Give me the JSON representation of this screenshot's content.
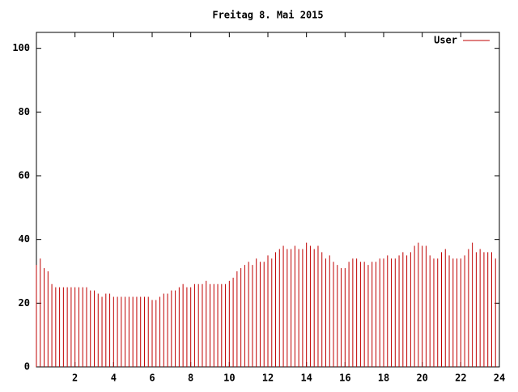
{
  "chart_data": {
    "type": "impulses",
    "title": "Freitag 8. Mai 2015",
    "x": [
      0,
      0.2,
      0.4,
      0.6,
      0.8,
      1,
      1.2,
      1.4,
      1.6,
      1.8,
      2,
      2.2,
      2.4,
      2.6,
      2.8,
      3,
      3.2,
      3.4,
      3.6,
      3.8,
      4,
      4.2,
      4.4,
      4.6,
      4.8,
      5,
      5.2,
      5.4,
      5.6,
      5.8,
      6,
      6.2,
      6.4,
      6.6,
      6.8,
      7,
      7.2,
      7.4,
      7.6,
      7.8,
      8,
      8.2,
      8.4,
      8.6,
      8.8,
      9,
      9.2,
      9.4,
      9.6,
      9.8,
      10,
      10.2,
      10.4,
      10.6,
      10.8,
      11,
      11.2,
      11.4,
      11.6,
      11.8,
      12,
      12.2,
      12.4,
      12.6,
      12.8,
      13,
      13.2,
      13.4,
      13.6,
      13.8,
      14,
      14.2,
      14.4,
      14.6,
      14.8,
      15,
      15.2,
      15.4,
      15.6,
      15.8,
      16,
      16.2,
      16.4,
      16.6,
      16.8,
      17,
      17.2,
      17.4,
      17.6,
      17.8,
      18,
      18.2,
      18.4,
      18.6,
      18.8,
      19,
      19.2,
      19.4,
      19.6,
      19.8,
      20,
      20.2,
      20.4,
      20.6,
      20.8,
      21,
      21.2,
      21.4,
      21.6,
      21.8,
      22,
      22.2,
      22.4,
      22.6,
      22.8,
      23,
      23.2,
      23.4,
      23.6,
      23.8
    ],
    "series": [
      {
        "name": "User",
        "color": "#c00000",
        "values": [
          32,
          34,
          31,
          30,
          26,
          25,
          25,
          25,
          25,
          25,
          25,
          25,
          25,
          25,
          24,
          24,
          23,
          22,
          23,
          23,
          22,
          22,
          22,
          22,
          22,
          22,
          22,
          22,
          22,
          22,
          21,
          21,
          22,
          23,
          23,
          24,
          24,
          25,
          26,
          25,
          25,
          26,
          26,
          26,
          27,
          26,
          26,
          26,
          26,
          26,
          27,
          28,
          30,
          31,
          32,
          33,
          32,
          34,
          33,
          33,
          35,
          34,
          36,
          37,
          38,
          37,
          37,
          38,
          37,
          37,
          39,
          38,
          37,
          38,
          36,
          34,
          35,
          33,
          32,
          31,
          31,
          33,
          34,
          34,
          33,
          33,
          32,
          33,
          33,
          34,
          34,
          35,
          34,
          34,
          35,
          36,
          35,
          36,
          38,
          39,
          38,
          38,
          35,
          34,
          34,
          36,
          37,
          35,
          34,
          34,
          34,
          35,
          37,
          39,
          36,
          37,
          36,
          36,
          36,
          34
        ]
      }
    ],
    "xlim": [
      0,
      24
    ],
    "xticks": [
      2,
      4,
      6,
      8,
      10,
      12,
      14,
      16,
      18,
      20,
      22,
      24
    ],
    "ylim": [
      0,
      105
    ],
    "yticks": [
      0,
      20,
      40,
      60,
      80,
      100
    ],
    "legend": "top-right"
  }
}
